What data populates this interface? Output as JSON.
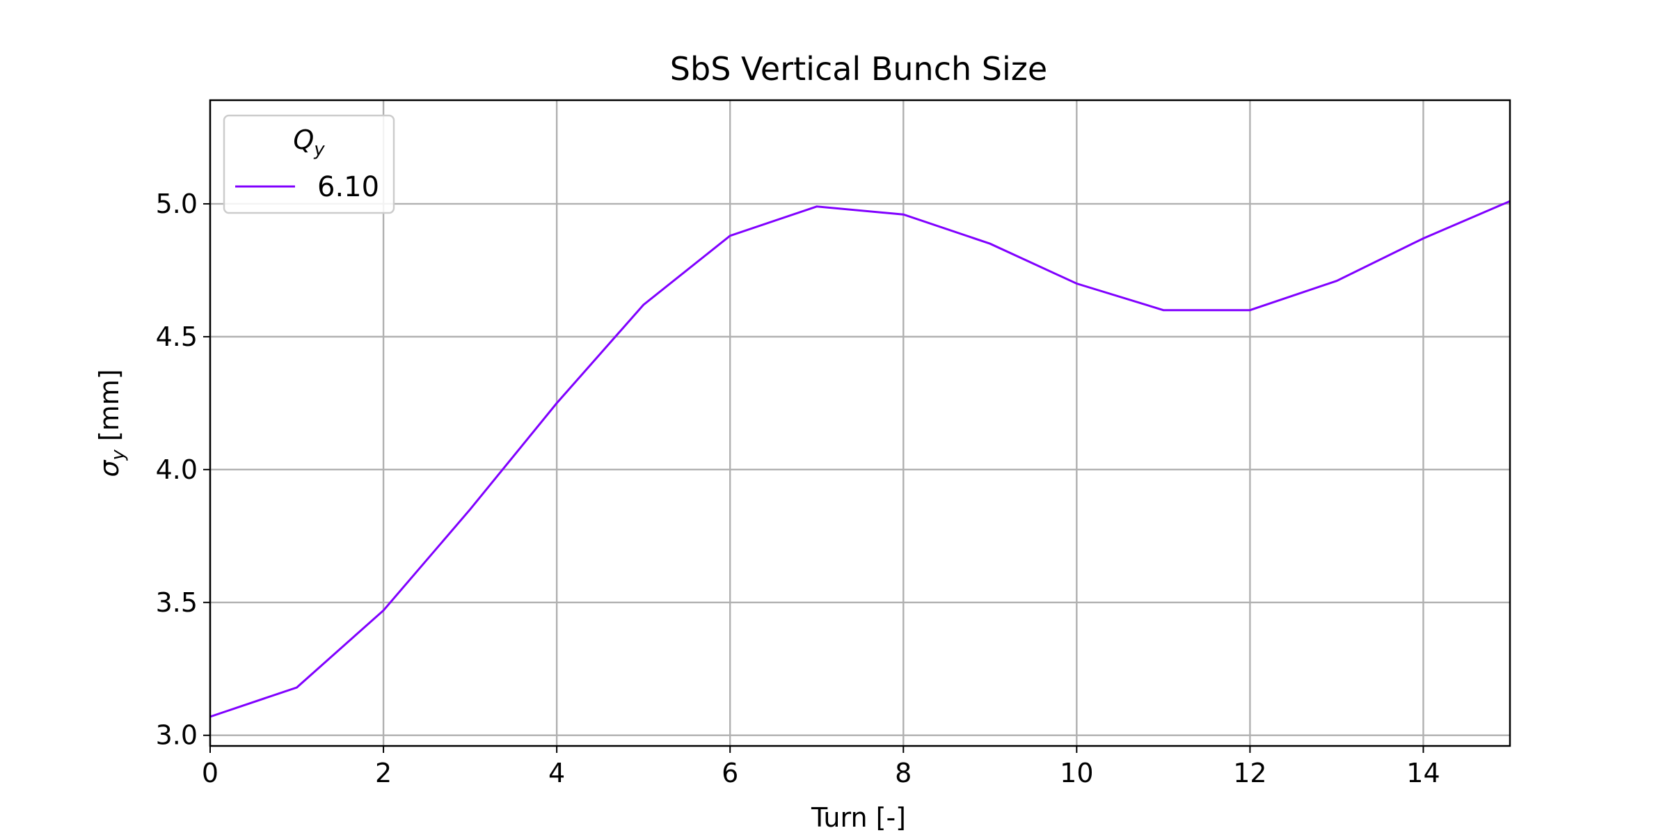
{
  "chart_data": {
    "type": "line",
    "title": "SbS Vertical Bunch Size",
    "xlabel": "Turn [-]",
    "ylabel": "σ_y [mm]",
    "xlim": [
      0,
      15
    ],
    "ylim": [
      2.96,
      5.39
    ],
    "xticks": [
      0,
      2,
      4,
      6,
      8,
      10,
      12,
      14
    ],
    "yticks": [
      3.0,
      3.5,
      4.0,
      4.5,
      5.0
    ],
    "grid": true,
    "legend": {
      "title": "Q_y",
      "placement": "top-left"
    },
    "series": [
      {
        "name": "6.10",
        "color": "#8000ff",
        "x": [
          0,
          1,
          2,
          3,
          4,
          5,
          6,
          7,
          8,
          9,
          10,
          11,
          12,
          13,
          14,
          15
        ],
        "y": [
          3.07,
          3.18,
          3.47,
          3.85,
          4.25,
          4.62,
          4.88,
          4.99,
          4.96,
          4.85,
          4.7,
          4.6,
          4.6,
          4.71,
          4.87,
          5.01
        ]
      }
    ]
  }
}
